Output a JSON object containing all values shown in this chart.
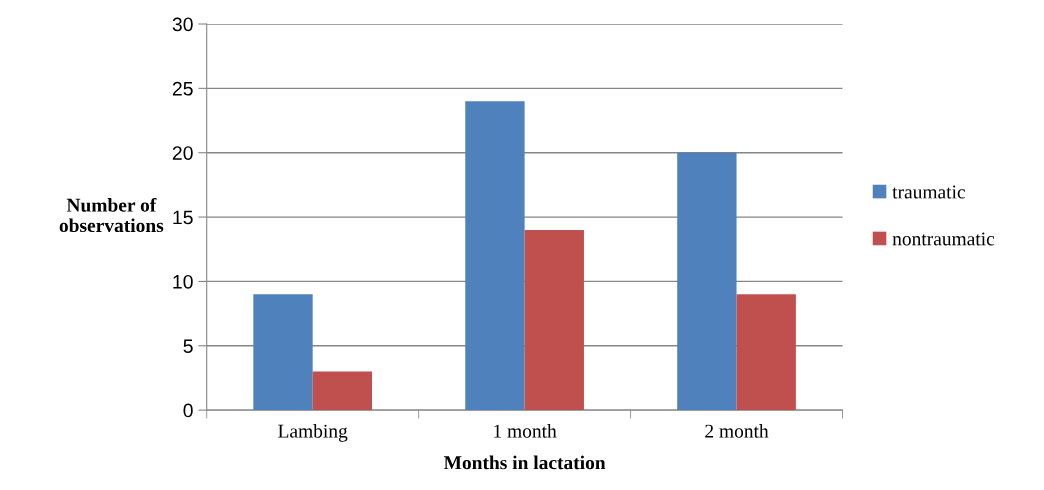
{
  "chart_data": {
    "type": "bar",
    "xlabel": "Months in lactation",
    "ylabel": "Number of\nobservations",
    "categories": [
      "Lambing",
      "1 month",
      "2 month"
    ],
    "series": [
      {
        "name": "traumatic",
        "color": "#4f81bd",
        "values": [
          9,
          24,
          20
        ]
      },
      {
        "name": "nontraumatic",
        "color": "#c0504d",
        "values": [
          3,
          14,
          9
        ]
      }
    ],
    "ylim": [
      0,
      30
    ],
    "yticks": [
      0,
      5,
      10,
      15,
      20,
      25,
      30
    ],
    "grid": "y",
    "legend": "right"
  }
}
